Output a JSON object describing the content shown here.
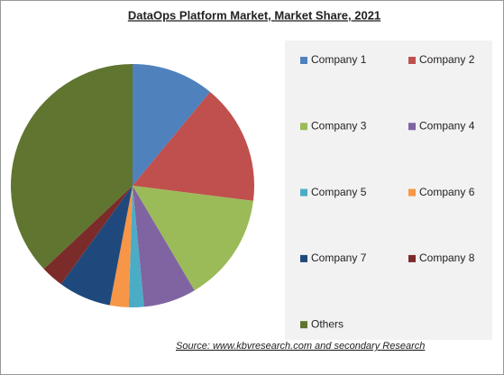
{
  "chart_data": {
    "type": "pie",
    "title": "DataOps Platform Market, Market Share, 2021",
    "categories": [
      "Company 1",
      "Company 2",
      "Company 3",
      "Company 4",
      "Company 5",
      "Company 6",
      "Company 7",
      "Company 8",
      "Others"
    ],
    "values": [
      11,
      16,
      14.5,
      7,
      2,
      2.5,
      7,
      3,
      37
    ],
    "colors": [
      "#4f81bd",
      "#c0504d",
      "#9bbb59",
      "#8064a2",
      "#4bacc6",
      "#f79646",
      "#1f497d",
      "#7b2c2a",
      "#5f7530"
    ],
    "source": "Source:  www.kbvresearch.com   and secondary Research"
  }
}
